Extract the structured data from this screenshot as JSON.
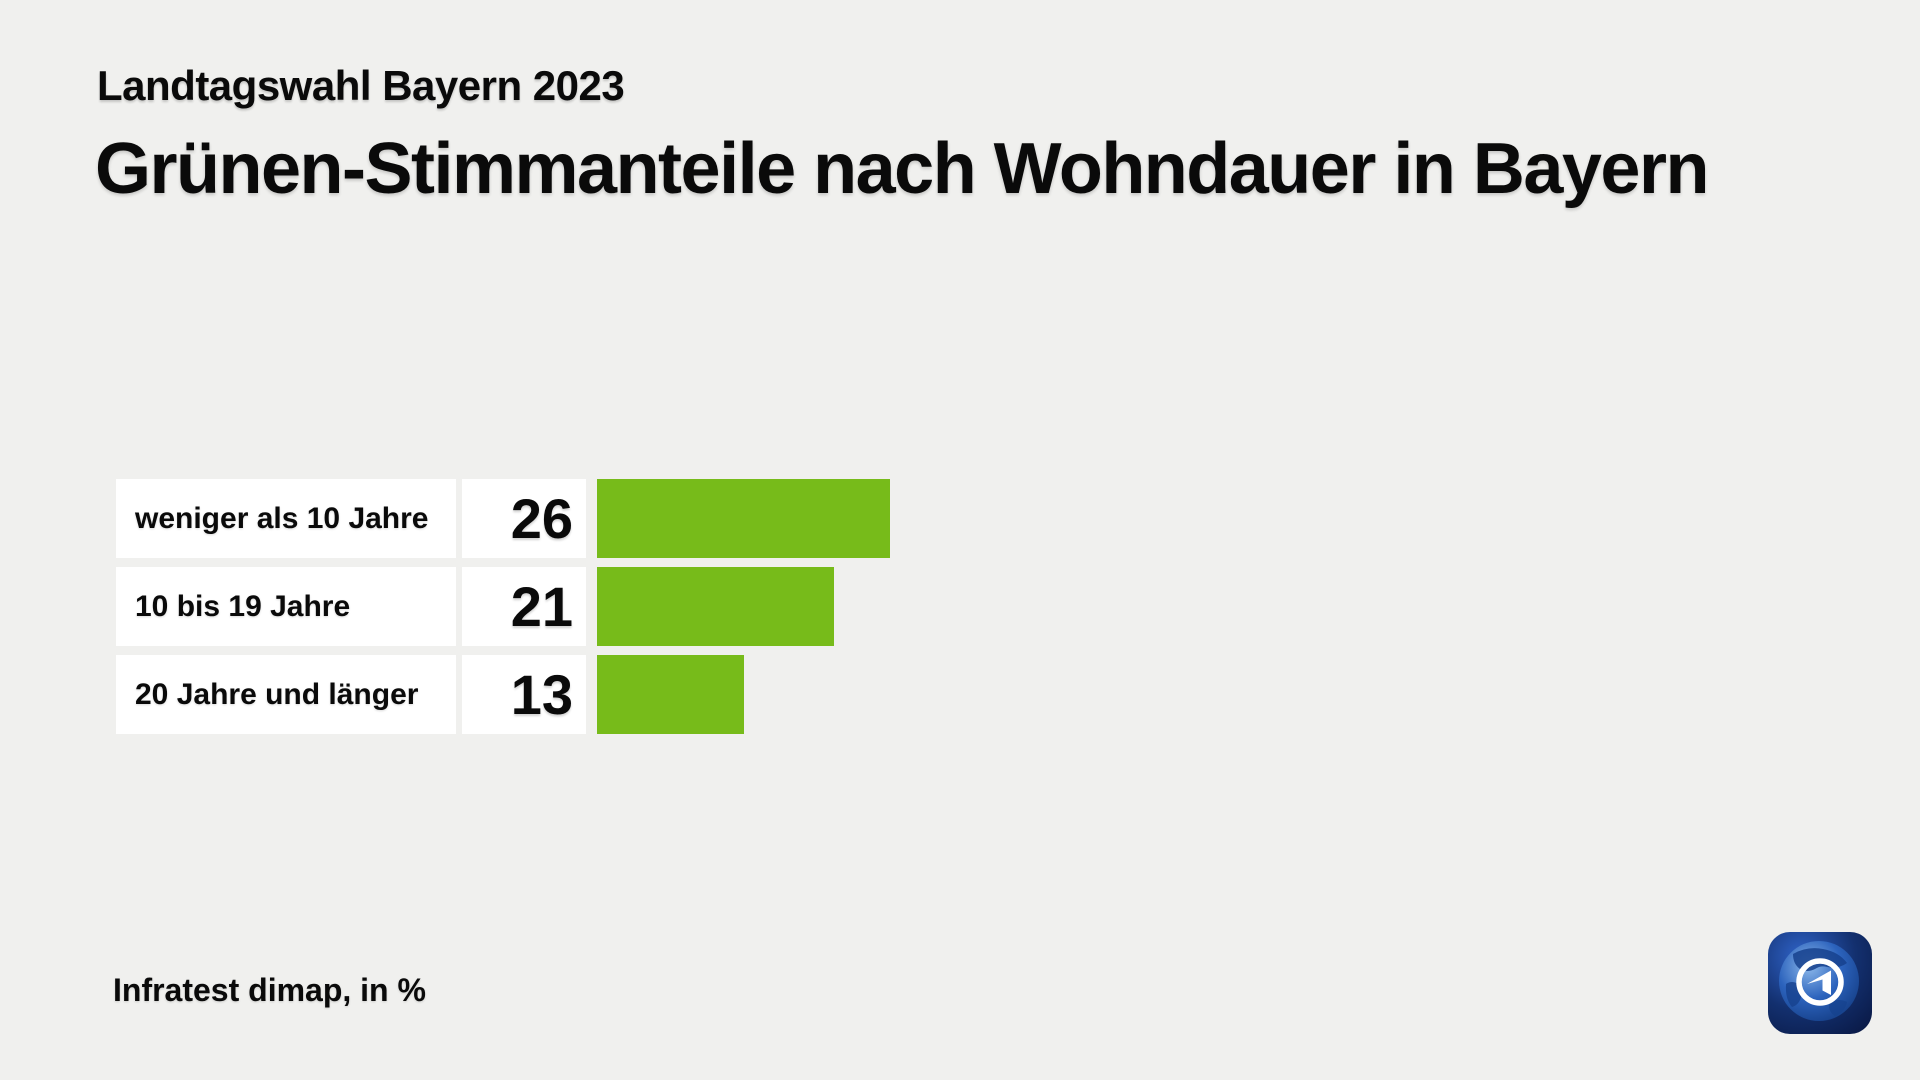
{
  "meta": {
    "background_color": "#f0f0ee",
    "panel_color": "#ffffff",
    "text_color": "#0a0a0a",
    "bar_color": "#77bb1a",
    "brand_blue": "#0e2161"
  },
  "header": {
    "subtitle": "Landtagswahl Bayern 2023",
    "title": "Grünen-Stimmanteile nach Wohndauer in Bayern"
  },
  "chart_data": {
    "type": "bar",
    "orientation": "horizontal",
    "title": "Grünen-Stimmanteile nach Wohndauer in Bayern",
    "subtitle": "Landtagswahl Bayern 2023",
    "categories": [
      "weniger als 10 Jahre",
      "10 bis 19 Jahre",
      "20 Jahre und länger"
    ],
    "values": [
      26,
      21,
      13
    ],
    "unit": "%",
    "source": "Infratest dimap",
    "xlim": [
      0,
      26
    ],
    "bar_color": "#77bb1a",
    "value_labels_shown": true,
    "grid": false,
    "legend": false
  },
  "footer": {
    "source_label": "Infratest dimap, in %"
  },
  "icons": {
    "brand_logo": "ard-tagesschau-logo"
  }
}
